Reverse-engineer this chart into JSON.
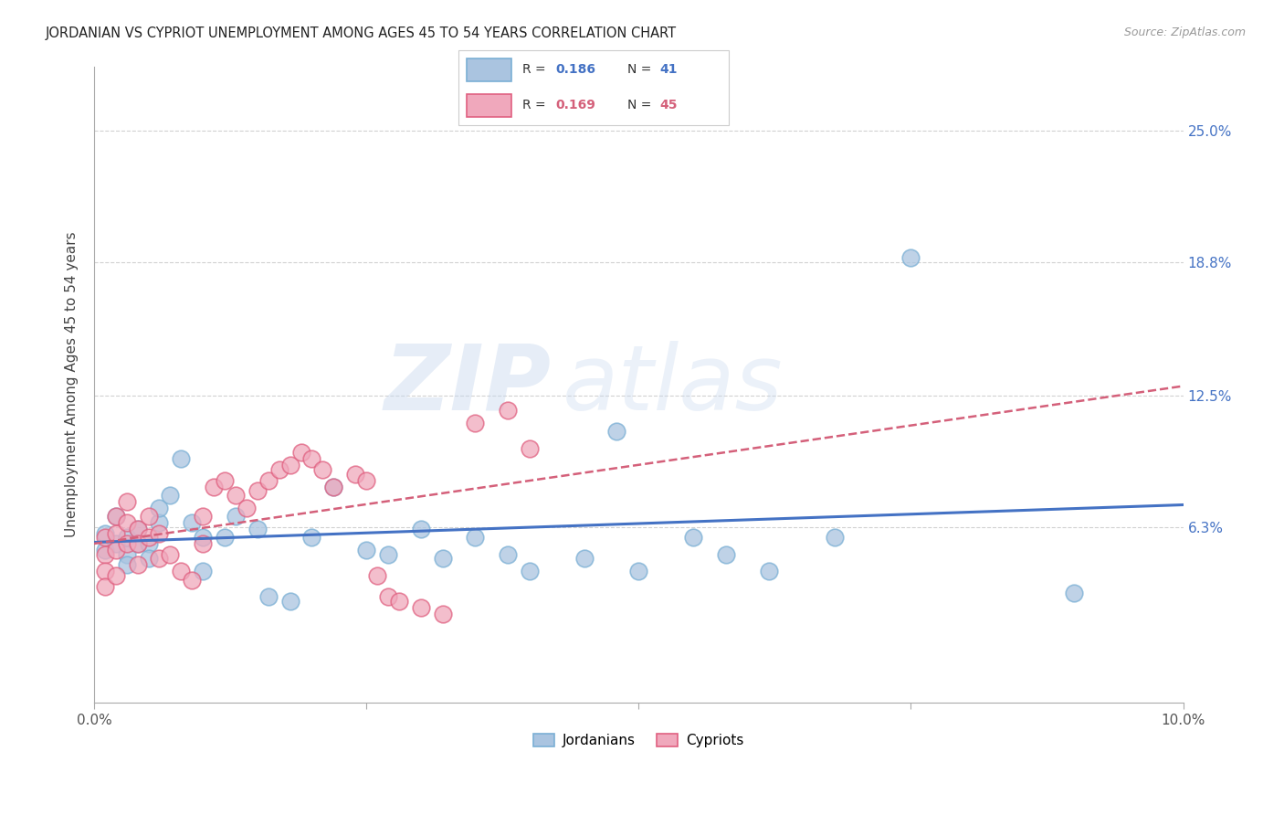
{
  "title": "JORDANIAN VS CYPRIOT UNEMPLOYMENT AMONG AGES 45 TO 54 YEARS CORRELATION CHART",
  "source": "Source: ZipAtlas.com",
  "ylabel": "Unemployment Among Ages 45 to 54 years",
  "xlim": [
    0.0,
    0.1
  ],
  "ylim": [
    -0.02,
    0.28
  ],
  "ytick_vals": [
    0.063,
    0.125,
    0.188,
    0.25
  ],
  "ytick_labels": [
    "6.3%",
    "12.5%",
    "18.8%",
    "25.0%"
  ],
  "grid_color": "#cccccc",
  "background_color": "#ffffff",
  "watermark_zip": "ZIP",
  "watermark_atlas": "atlas",
  "legend_r1": "0.186",
  "legend_n1": "41",
  "legend_r2": "0.169",
  "legend_n2": "45",
  "jordanian_color": "#aac4e0",
  "jordanian_edge": "#7aafd4",
  "cypriot_color": "#f0a8bc",
  "cypriot_edge": "#e06080",
  "trendline_jordan_color": "#4472c4",
  "trendline_cyprus_color": "#d4607a",
  "jordanian_x": [
    0.001,
    0.001,
    0.002,
    0.002,
    0.003,
    0.003,
    0.003,
    0.004,
    0.004,
    0.005,
    0.005,
    0.006,
    0.006,
    0.007,
    0.008,
    0.009,
    0.01,
    0.01,
    0.012,
    0.013,
    0.015,
    0.016,
    0.018,
    0.02,
    0.022,
    0.025,
    0.027,
    0.03,
    0.032,
    0.035,
    0.038,
    0.04,
    0.045,
    0.048,
    0.05,
    0.055,
    0.058,
    0.062,
    0.068,
    0.075,
    0.09
  ],
  "jordanian_y": [
    0.06,
    0.052,
    0.068,
    0.055,
    0.058,
    0.05,
    0.045,
    0.062,
    0.055,
    0.055,
    0.048,
    0.065,
    0.072,
    0.078,
    0.095,
    0.065,
    0.058,
    0.042,
    0.058,
    0.068,
    0.062,
    0.03,
    0.028,
    0.058,
    0.082,
    0.052,
    0.05,
    0.062,
    0.048,
    0.058,
    0.05,
    0.042,
    0.048,
    0.108,
    0.042,
    0.058,
    0.05,
    0.042,
    0.058,
    0.19,
    0.032
  ],
  "cypriot_x": [
    0.001,
    0.001,
    0.001,
    0.001,
    0.002,
    0.002,
    0.002,
    0.002,
    0.003,
    0.003,
    0.003,
    0.004,
    0.004,
    0.004,
    0.005,
    0.005,
    0.006,
    0.006,
    0.007,
    0.008,
    0.009,
    0.01,
    0.01,
    0.011,
    0.012,
    0.013,
    0.014,
    0.015,
    0.016,
    0.017,
    0.018,
    0.019,
    0.02,
    0.021,
    0.022,
    0.024,
    0.025,
    0.026,
    0.027,
    0.028,
    0.03,
    0.032,
    0.035,
    0.038,
    0.04
  ],
  "cypriot_y": [
    0.058,
    0.05,
    0.042,
    0.035,
    0.068,
    0.06,
    0.052,
    0.04,
    0.075,
    0.065,
    0.055,
    0.062,
    0.055,
    0.045,
    0.068,
    0.058,
    0.06,
    0.048,
    0.05,
    0.042,
    0.038,
    0.068,
    0.055,
    0.082,
    0.085,
    0.078,
    0.072,
    0.08,
    0.085,
    0.09,
    0.092,
    0.098,
    0.095,
    0.09,
    0.082,
    0.088,
    0.085,
    0.04,
    0.03,
    0.028,
    0.025,
    0.022,
    0.112,
    0.118,
    0.1
  ]
}
